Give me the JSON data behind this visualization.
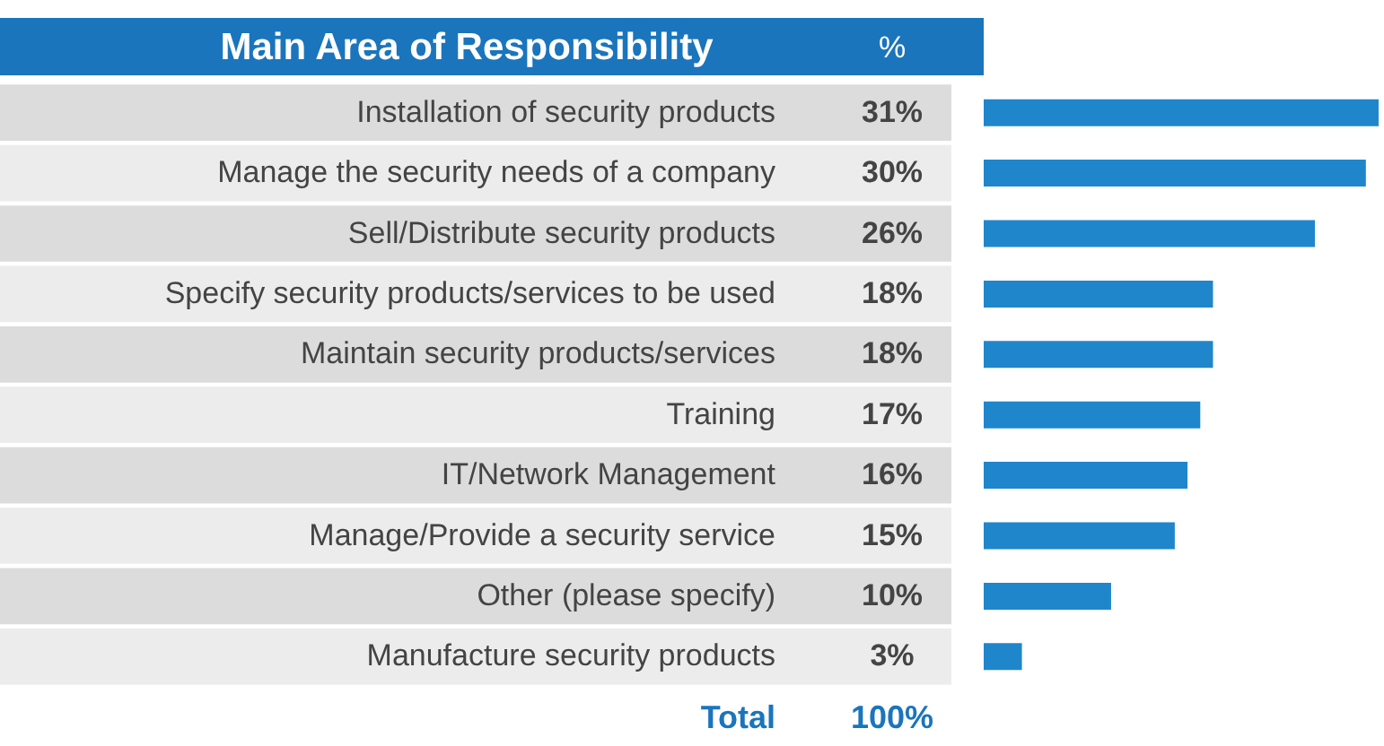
{
  "chart_data": {
    "type": "bar",
    "orientation": "horizontal",
    "title": "Main Area of Responsibility",
    "xlabel": "%",
    "categories": [
      "Installation of security products",
      "Manage the security needs of a company",
      "Sell/Distribute security products",
      "Specify security products/services to be used",
      "Maintain security products/services",
      "Training",
      "IT/Network Management",
      "Manage/Provide a security service",
      "Other (please specify)",
      "Manufacture security products"
    ],
    "values": [
      31,
      30,
      26,
      18,
      18,
      17,
      16,
      15,
      10,
      3
    ],
    "value_labels": [
      "31%",
      "30%",
      "26%",
      "18%",
      "18%",
      "17%",
      "16%",
      "15%",
      "10%",
      "3%"
    ],
    "color": "#1f86cc",
    "annotations": [
      "Total",
      "100%"
    ]
  }
}
